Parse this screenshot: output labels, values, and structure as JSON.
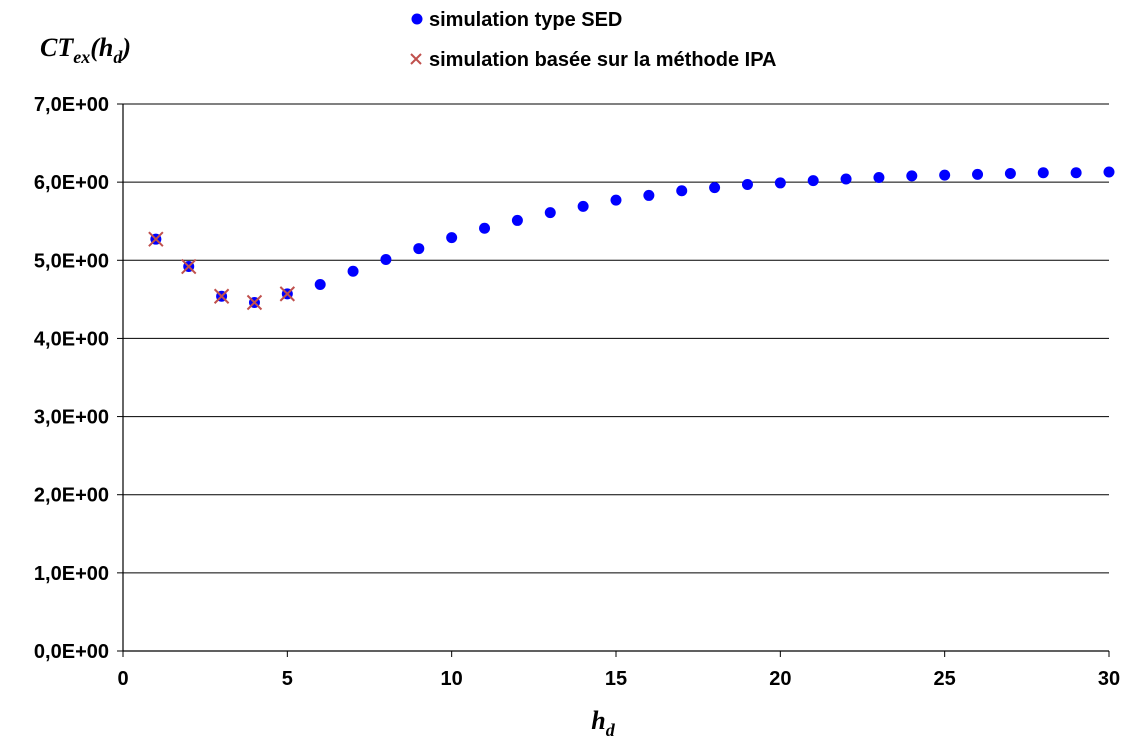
{
  "chart_data": {
    "type": "scatter",
    "title": "",
    "ylabel": {
      "main": "CT",
      "sub": "ex",
      "rest": "(h",
      "sub2": "d",
      "close": ")"
    },
    "xlabel": {
      "main": "h",
      "sub": "d"
    },
    "xlim": [
      0,
      30
    ],
    "ylim": [
      0,
      7
    ],
    "x_ticks": [
      0,
      5,
      10,
      15,
      20,
      25,
      30
    ],
    "x_tick_labels": [
      "0",
      "5",
      "10",
      "15",
      "20",
      "25",
      "30"
    ],
    "y_ticks": [
      0,
      1,
      2,
      3,
      4,
      5,
      6,
      7
    ],
    "y_tick_labels": [
      "0,0E+00",
      "1,0E+00",
      "2,0E+00",
      "3,0E+00",
      "4,0E+00",
      "5,0E+00",
      "6,0E+00",
      "7,0E+00"
    ],
    "grid": "horizontal",
    "legend": "top",
    "colors": {
      "sed": "#0000ff",
      "ipa": "#c0504d"
    },
    "series": [
      {
        "name": "simulation type SED",
        "marker": "circle",
        "x": [
          1,
          2,
          3,
          4,
          5,
          6,
          7,
          8,
          9,
          10,
          11,
          12,
          13,
          14,
          15,
          16,
          17,
          18,
          19,
          20,
          21,
          22,
          23,
          24,
          25,
          26,
          27,
          28,
          29,
          30
        ],
        "y": [
          5.27,
          4.92,
          4.54,
          4.46,
          4.57,
          4.69,
          4.86,
          5.01,
          5.15,
          5.29,
          5.41,
          5.51,
          5.61,
          5.69,
          5.77,
          5.83,
          5.89,
          5.93,
          5.97,
          5.99,
          6.02,
          6.04,
          6.06,
          6.08,
          6.09,
          6.1,
          6.11,
          6.12,
          6.12,
          6.13
        ]
      },
      {
        "name": "simulation basée sur la méthode IPA",
        "marker": "x",
        "x": [
          1,
          2,
          3,
          4,
          5
        ],
        "y": [
          5.27,
          4.92,
          4.54,
          4.46,
          4.57
        ]
      }
    ]
  }
}
